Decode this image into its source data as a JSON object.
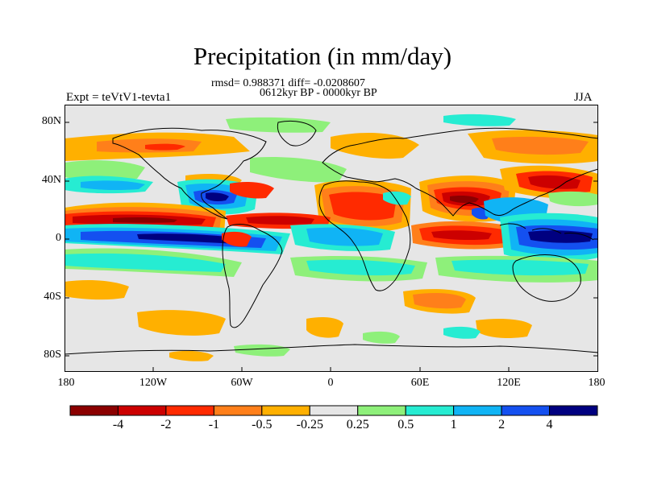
{
  "title": "Precipitation (in mm/day)",
  "stats": "rmsd= 0.988371  diff= -0.0208607",
  "period": "0612kyr BP - 0000kyr BP",
  "expt": "Expt = teVtV1-tevta1",
  "season": "JJA",
  "lat_labels": [
    "80N",
    "40N",
    "0",
    "40S",
    "80S"
  ],
  "lon_labels": [
    "180",
    "120W",
    "60W",
    "0",
    "60E",
    "120E",
    "180"
  ],
  "colorbar": {
    "colors": [
      "#8b0000",
      "#cc0000",
      "#ff2a00",
      "#ff7f1a",
      "#ffb000",
      "#e6e6e6",
      "#8ef07a",
      "#26ecd2",
      "#10b4f5",
      "#1450f0",
      "#000080"
    ],
    "labels": [
      "-4",
      "-2",
      "-1",
      "-0.5",
      "-0.25",
      "0.25",
      "0.5",
      "1",
      "2",
      "4"
    ]
  },
  "colors": {
    "land_line": "#000000",
    "neutral": "#e6e6e6"
  }
}
